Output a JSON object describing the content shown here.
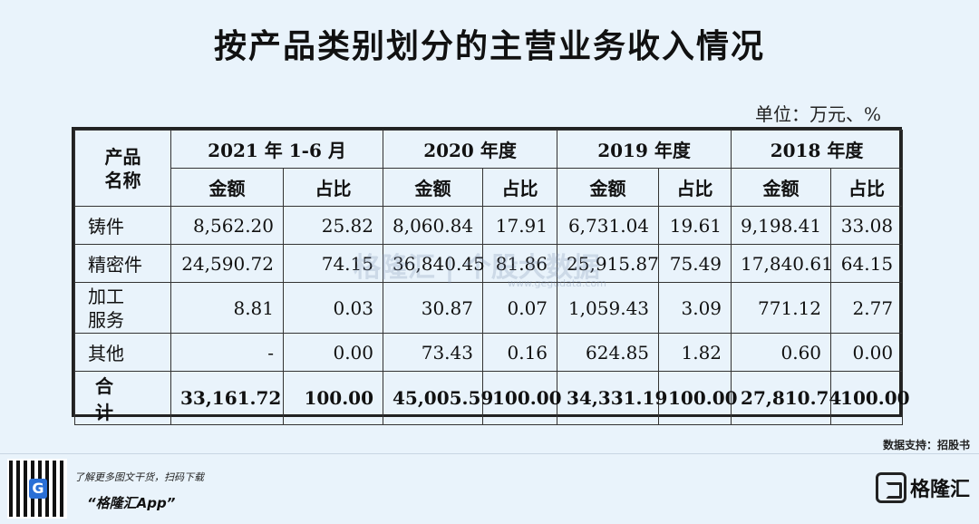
{
  "title": "按产品类别划分的主营业务收入情况",
  "unit": "单位：万元、%",
  "table": {
    "product_header_line1": "产品",
    "product_header_line2": "名称",
    "periods": [
      "2021 年 1-6 月",
      "2020 年度",
      "2019 年度",
      "2018 年度"
    ],
    "sub_headers": {
      "amount": "金额",
      "ratio": "占比"
    },
    "rows": [
      {
        "name": "铸件",
        "cells": [
          "8,562.20",
          "25.82",
          "8,060.84",
          "17.91",
          "6,731.04",
          "19.61",
          "9,198.41",
          "33.08"
        ]
      },
      {
        "name": "精密件",
        "cells": [
          "24,590.72",
          "74.15",
          "36,840.45",
          "81.86",
          "25,915.87",
          "75.49",
          "17,840.61",
          "64.15"
        ]
      },
      {
        "name_line1": "加工",
        "name_line2": "服务",
        "cells": [
          "8.81",
          "0.03",
          "30.87",
          "0.07",
          "1,059.43",
          "3.09",
          "771.12",
          "2.77"
        ]
      },
      {
        "name": "其他",
        "cells": [
          "-",
          "0.00",
          "73.43",
          "0.16",
          "624.85",
          "1.82",
          "0.60",
          "0.00"
        ]
      }
    ],
    "total": {
      "name": "合 计",
      "cells": [
        "33,161.72",
        "100.00",
        "45,005.59",
        "100.00",
        "34,331.19",
        "100.00",
        "27,810.74",
        "100.00"
      ]
    }
  },
  "watermark": {
    "brand": "格隆汇 | 个股大数据",
    "url": "www.gegudata.com"
  },
  "source": "数据支持：招股书",
  "footer": {
    "promo": "了解更多图文干货，扫码下载",
    "app_name": "“格隆汇App”",
    "brand": "格隆汇"
  }
}
